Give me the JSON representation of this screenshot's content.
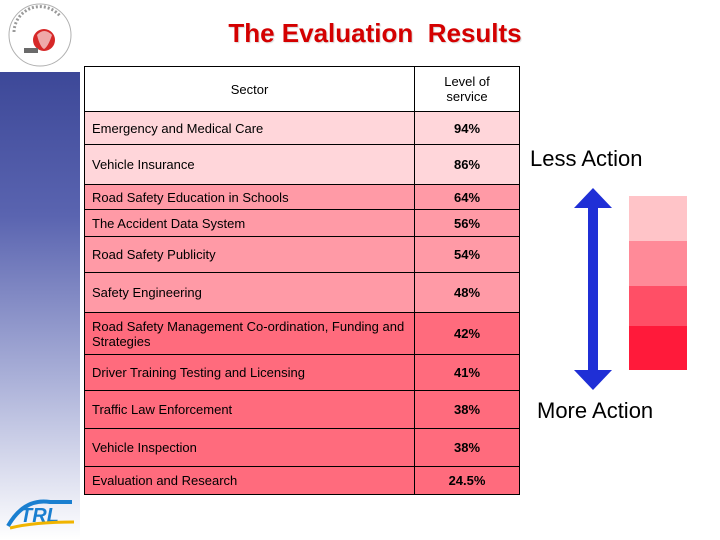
{
  "title": "The Evaluation  Results",
  "table": {
    "headers": {
      "sector": "Sector",
      "level": "Level of service"
    },
    "rows": [
      {
        "sector": "Emergency and Medical Care",
        "level": "94%"
      },
      {
        "sector": "Vehicle Insurance",
        "level": "86%"
      },
      {
        "sector": "Road Safety Education in Schools",
        "level": "64%"
      },
      {
        "sector": "The Accident Data System",
        "level": "56%"
      },
      {
        "sector": "Road Safety Publicity",
        "level": "54%"
      },
      {
        "sector": "Safety Engineering",
        "level": "48%"
      },
      {
        "sector": "Road Safety Management Co-ordination, Funding and Strategies",
        "level": "42%"
      },
      {
        "sector": "Driver Training  Testing and Licensing",
        "level": "41%"
      },
      {
        "sector": "Traffic Law Enforcement",
        "level": "38%"
      },
      {
        "sector": "Vehicle Inspection",
        "level": "38%"
      },
      {
        "sector": "Evaluation and Research",
        "level": "24.5%"
      }
    ]
  },
  "legend": {
    "less_label": "Less Action",
    "more_label": "More Action",
    "arrow_color": "#1f2fd6",
    "scale_colors": [
      "#ffc4c8",
      "#ff8a98",
      "#ff4f66",
      "#ff1a3a"
    ]
  },
  "logos": {
    "top_logo": "circular emblem",
    "bottom_logo": "TRL"
  },
  "colors": {
    "title": "#d40000",
    "row_white": "#ffffff",
    "row_pink": "#ffd6da",
    "row_salmon": "#ff9aa6",
    "row_red": "#ff6b7d"
  }
}
